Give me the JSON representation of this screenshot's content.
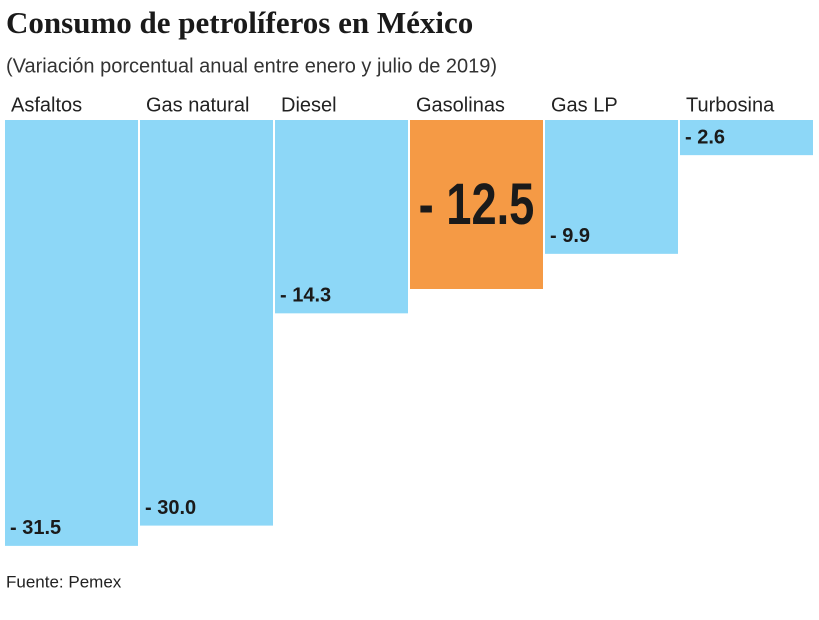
{
  "chart_data": {
    "type": "bar",
    "title": "Consumo de petrolíferos en México",
    "subtitle": "(Variación porcentual anual entre enero y julio de 2019)",
    "source": "Fuente: Pemex",
    "categories": [
      "Asfaltos",
      "Gas natural",
      "Diesel",
      "Gasolinas",
      "Gas LP",
      "Turbosina"
    ],
    "values": [
      -31.5,
      -30.0,
      -14.3,
      -12.5,
      -9.9,
      -2.6
    ],
    "value_labels": [
      "- 31.5",
      "- 30.0",
      "- 14.3",
      "- 12.5",
      "- 9.9",
      "- 2.6"
    ],
    "color": "#8dd7f7",
    "colors": [
      "#8dd7f7",
      "#8dd7f7",
      "#8dd7f7",
      "#f59a45",
      "#8dd7f7",
      "#8dd7f7"
    ],
    "ylim": [
      -35,
      0
    ]
  }
}
